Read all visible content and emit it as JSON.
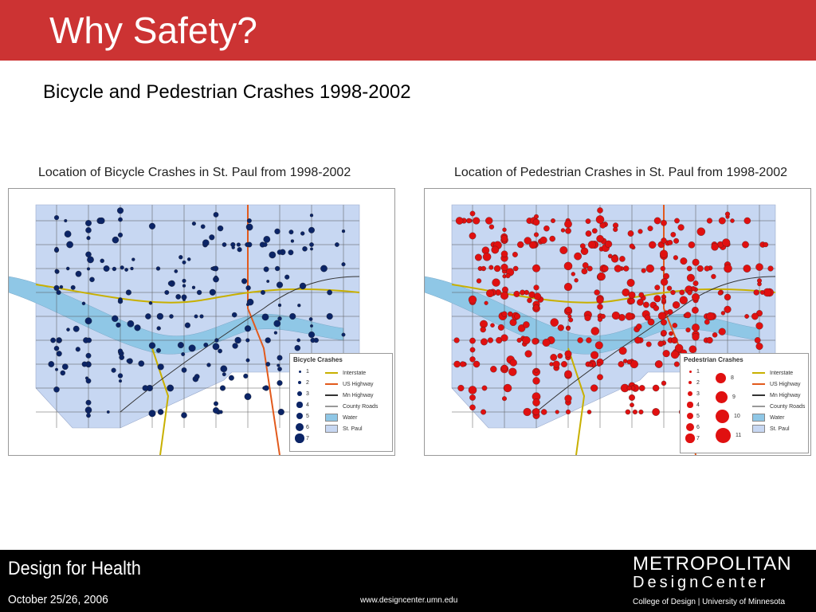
{
  "slide": {
    "title": "Why Safety?",
    "subtitle": "Bicycle and Pedestrian Crashes 1998-2002"
  },
  "maps": {
    "bicycle": {
      "title": "Location of Bicycle Crashes in St. Paul from 1998-2002",
      "marker_color": "#0b2466",
      "legend": {
        "heading": "Bicycle Crashes",
        "sizes": [
          "1",
          "2",
          "3",
          "4",
          "5",
          "6",
          "7"
        ],
        "lines": [
          "Interstate",
          "US Highway",
          "Mn Highway",
          "County Roads",
          "Water",
          "St. Paul"
        ]
      }
    },
    "pedestrian": {
      "title": "Location of Pedestrian Crashes in St. Paul from 1998-2002",
      "marker_color": "#e01010",
      "legend": {
        "heading": "Pedestrian Crashes",
        "sizes_col1": [
          "1",
          "2",
          "3",
          "4",
          "5",
          "6",
          "7"
        ],
        "sizes_col2": [
          "8",
          "9",
          "10",
          "11"
        ],
        "lines": [
          "Interstate",
          "US Highway",
          "Mn Highway",
          "County Roads",
          "Water",
          "St. Paul"
        ]
      }
    }
  },
  "colors": {
    "header": "#cc3333",
    "city_fill": "#c7d7f2",
    "water": "#8fc7e6",
    "interstate": "#c8b000",
    "us_highway": "#e25a1c",
    "mn_highway": "#333333"
  },
  "footer": {
    "program": "Design for Health",
    "date": "October 25/26, 2006",
    "url": "www.designcenter.umn.edu",
    "brand_line1": "METROPOLITAN",
    "brand_line2": "DesignCenter",
    "college": "College of Design | University of Minnesota"
  }
}
